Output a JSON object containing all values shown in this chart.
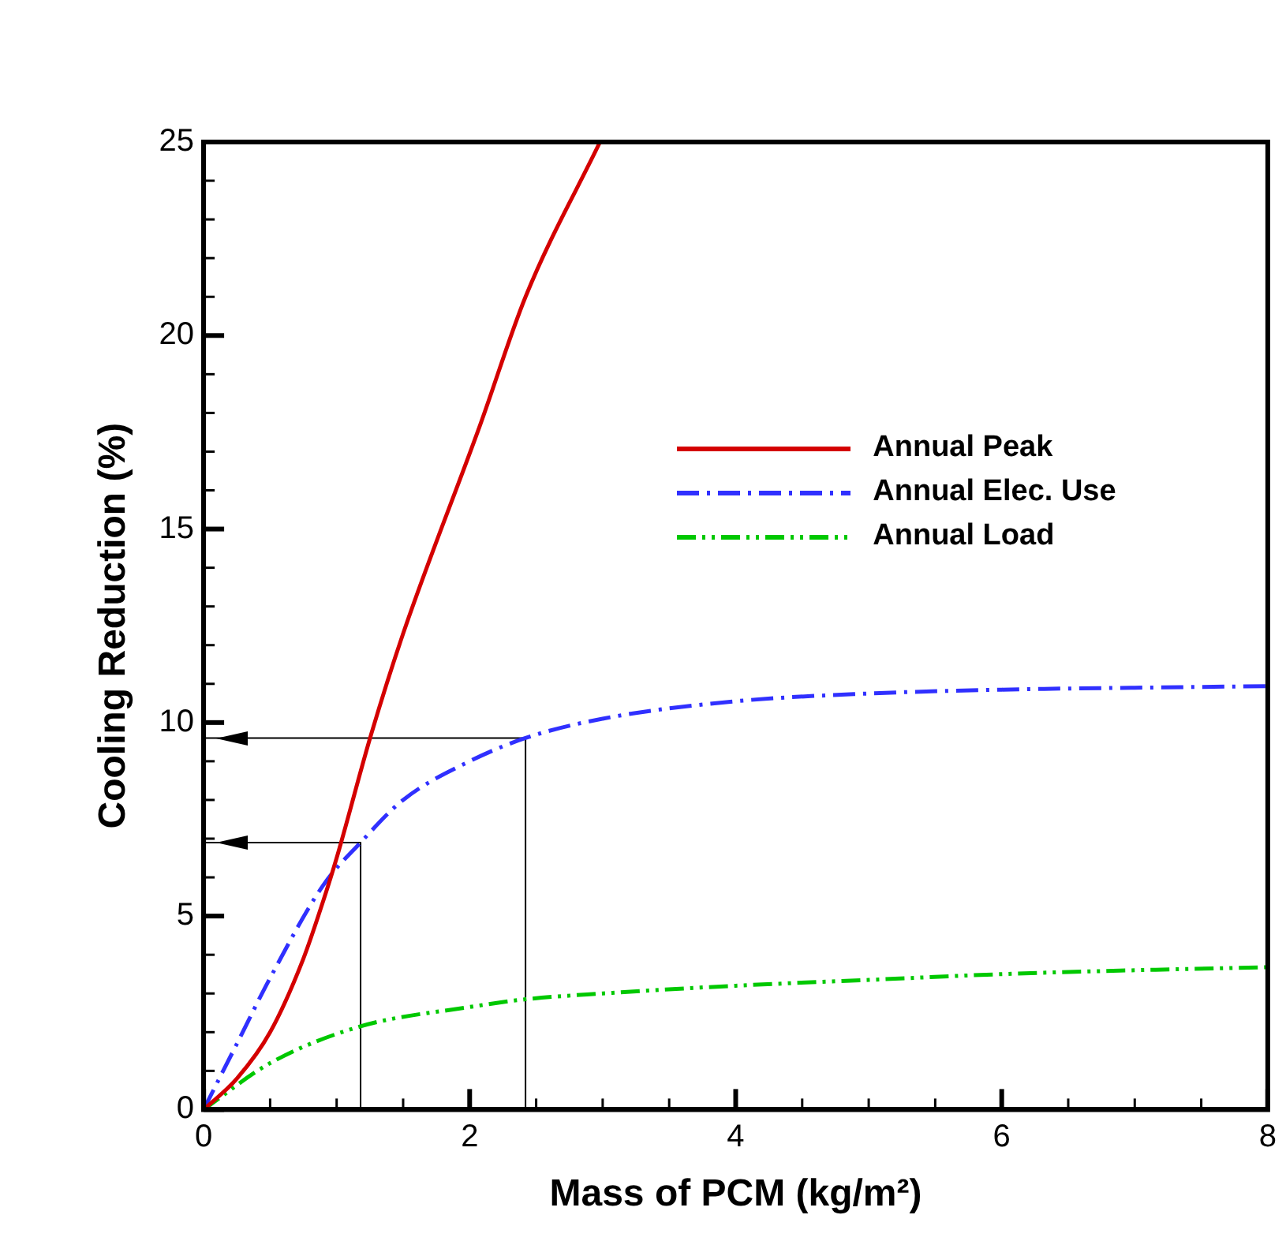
{
  "chart_data": {
    "type": "line",
    "xlabel": "Mass of PCM (kg/m²)",
    "ylabel": "Cooling Reduction (%)",
    "xlim": [
      0,
      8
    ],
    "ylim": [
      0,
      25
    ],
    "xticks": [
      0,
      {
        "value": 0.5,
        "label": null
      },
      {
        "value": 1,
        "label": null
      },
      {
        "value": 1.5,
        "label": null
      },
      2,
      {
        "value": 2.5,
        "label": null
      },
      {
        "value": 3,
        "label": null
      },
      {
        "value": 3.5,
        "label": null
      },
      4,
      {
        "value": 4.5,
        "label": null
      },
      {
        "value": 5,
        "label": null
      },
      {
        "value": 5.5,
        "label": null
      },
      6,
      {
        "value": 6.5,
        "label": null
      },
      {
        "value": 7,
        "label": null
      },
      {
        "value": 7.5,
        "label": null
      },
      8
    ],
    "yticks": [
      0,
      {
        "value": 1,
        "label": null
      },
      {
        "value": 2,
        "label": null
      },
      {
        "value": 3,
        "label": null
      },
      {
        "value": 4,
        "label": null
      },
      5,
      {
        "value": 6,
        "label": null
      },
      {
        "value": 7,
        "label": null
      },
      {
        "value": 8,
        "label": null
      },
      {
        "value": 9,
        "label": null
      },
      10,
      {
        "value": 11,
        "label": null
      },
      {
        "value": 12,
        "label": null
      },
      {
        "value": 13,
        "label": null
      },
      {
        "value": 14,
        "label": null
      },
      15,
      {
        "value": 16,
        "label": null
      },
      {
        "value": 17,
        "label": null
      },
      {
        "value": 18,
        "label": null
      },
      {
        "value": 19,
        "label": null
      },
      20,
      {
        "value": 21,
        "label": null
      },
      {
        "value": 22,
        "label": null
      },
      {
        "value": 23,
        "label": null
      },
      {
        "value": 24,
        "label": null
      },
      25
    ],
    "grid": false,
    "legend": "top right",
    "marker": "none",
    "series": [
      {
        "name": "Annual Peak",
        "color": "#d40000",
        "line_style": "solid",
        "x": [
          0,
          0.25,
          0.5,
          0.75,
          0.9,
          1.0,
          1.26,
          1.5,
          2.08,
          2.42,
          2.98
        ],
        "values": [
          0,
          0.8,
          2.0,
          3.9,
          5.4,
          6.5,
          9.7,
          12.3,
          17.7,
          21.0,
          25
        ]
      },
      {
        "name": "Annual Elec. Use",
        "color": "#3030ff",
        "line_style": "dashed",
        "x": [
          0,
          0.25,
          0.5,
          0.9,
          1.18,
          1.5,
          2.0,
          2.42,
          3,
          4,
          5,
          6,
          7,
          8
        ],
        "values": [
          0,
          1.7,
          3.4,
          5.8,
          6.9,
          8.0,
          9.0,
          9.6,
          10.1,
          10.55,
          10.75,
          10.85,
          10.9,
          10.94
        ]
      },
      {
        "name": "Annual Load",
        "color": "#00c800",
        "line_style": "dotted",
        "x": [
          0,
          0.5,
          1.18,
          2,
          2.42,
          3,
          4,
          5,
          6,
          7,
          8
        ],
        "values": [
          0,
          1.2,
          2.15,
          2.65,
          2.85,
          3.0,
          3.2,
          3.35,
          3.5,
          3.6,
          3.68
        ]
      },
      {
        "color": "#000000",
        "line_style": "solid",
        "x": [
          1.18,
          1.18,
          0
        ],
        "values": [
          0,
          6.9,
          6.9
        ]
      },
      {
        "color": "#000000",
        "line_style": "solid",
        "x": [
          2.42,
          2.42,
          0
        ],
        "values": [
          0,
          9.6,
          9.6
        ]
      }
    ]
  }
}
